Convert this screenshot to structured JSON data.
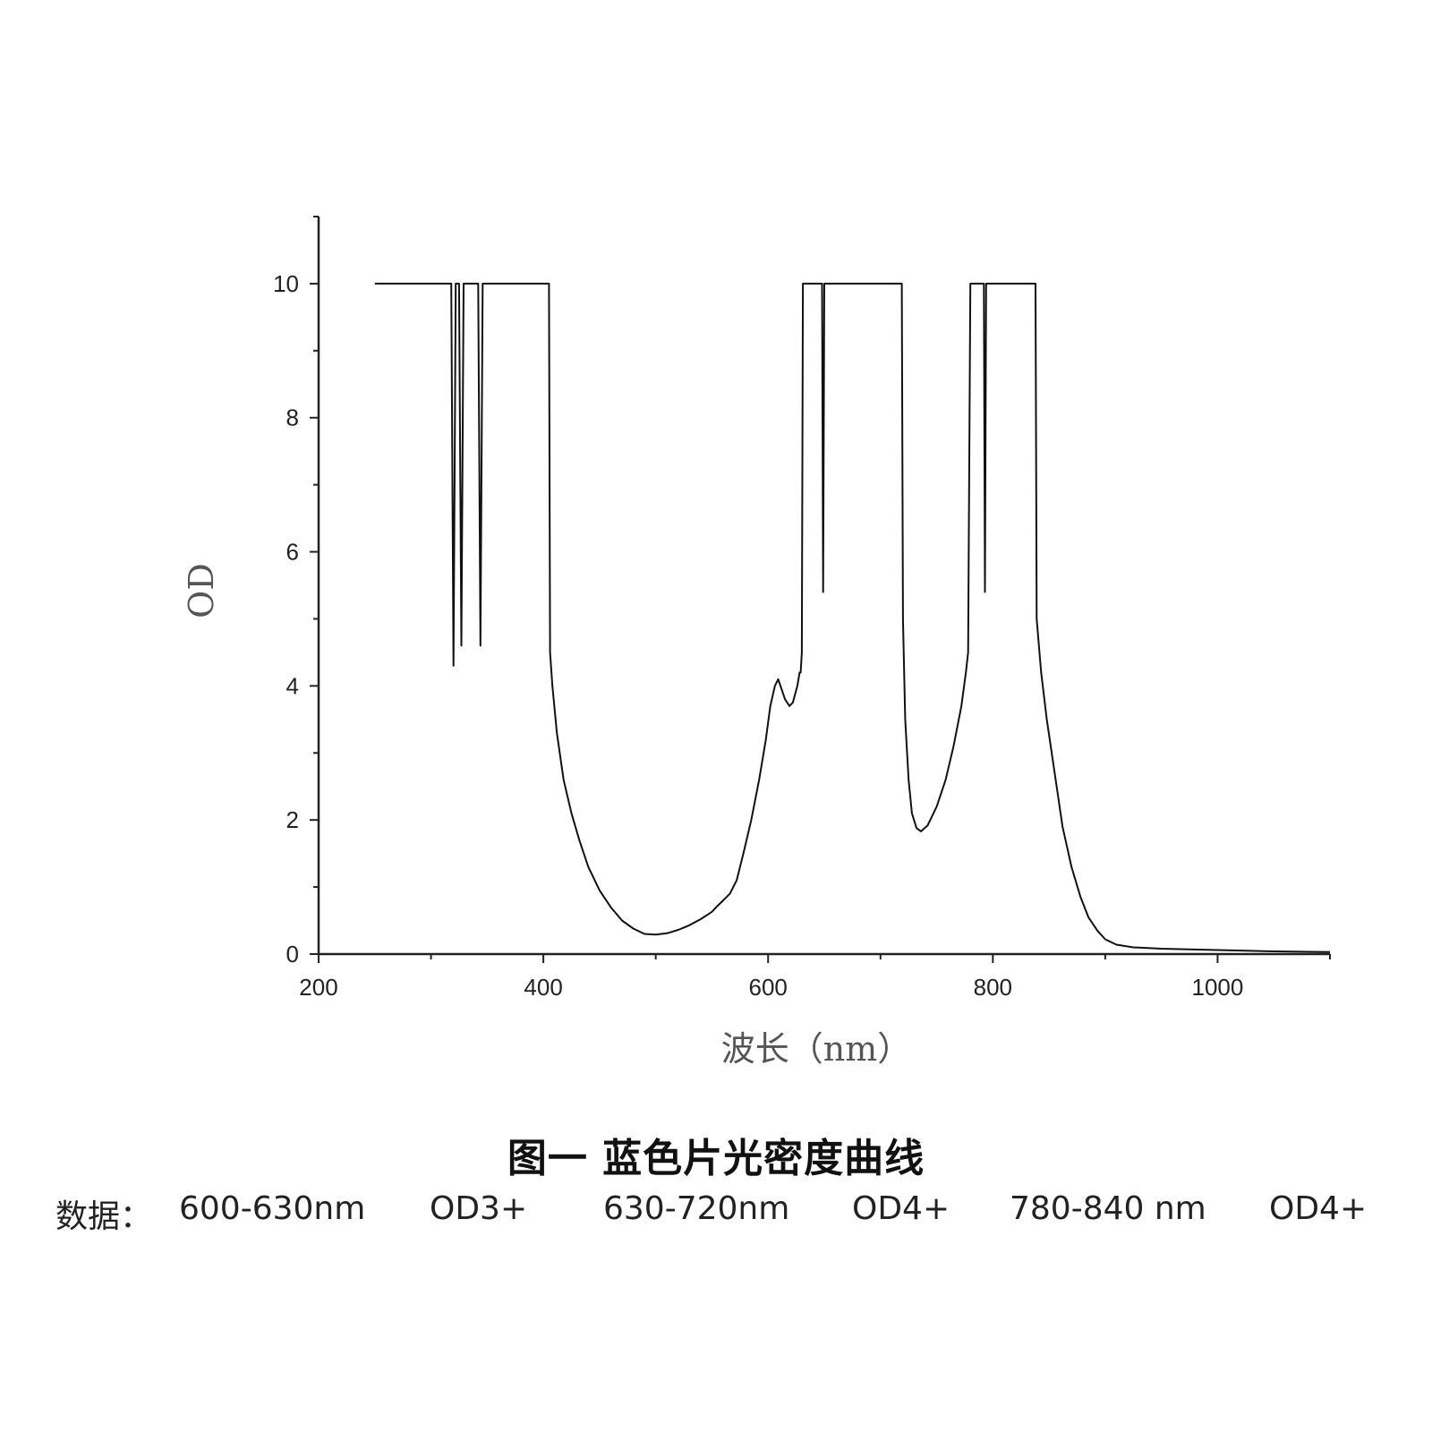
{
  "chart_data": {
    "type": "line",
    "xlabel": "波长（nm）",
    "ylabel": "OD",
    "xlim": [
      200,
      1100
    ],
    "ylim": [
      0,
      11
    ],
    "x_ticks": [
      200,
      400,
      600,
      800,
      1000
    ],
    "y_ticks": [
      0,
      2,
      4,
      6,
      8,
      10
    ],
    "grid": false,
    "series": [
      {
        "color": "#111111",
        "points": [
          [
            250,
            10.0
          ],
          [
            318,
            10.0
          ],
          [
            320,
            4.3
          ],
          [
            322,
            10.0
          ],
          [
            325,
            10.0
          ],
          [
            327,
            4.6
          ],
          [
            329,
            10.0
          ],
          [
            342,
            10.0
          ],
          [
            344,
            4.6
          ],
          [
            346,
            10.0
          ],
          [
            405,
            10.0
          ],
          [
            406,
            4.5
          ],
          [
            408,
            4.0
          ],
          [
            412,
            3.3
          ],
          [
            418,
            2.6
          ],
          [
            425,
            2.1
          ],
          [
            432,
            1.7
          ],
          [
            440,
            1.3
          ],
          [
            450,
            0.95
          ],
          [
            460,
            0.7
          ],
          [
            470,
            0.5
          ],
          [
            480,
            0.38
          ],
          [
            490,
            0.3
          ],
          [
            500,
            0.29
          ],
          [
            510,
            0.31
          ],
          [
            520,
            0.36
          ],
          [
            530,
            0.43
          ],
          [
            540,
            0.52
          ],
          [
            550,
            0.63
          ],
          [
            555,
            0.72
          ],
          [
            560,
            0.8
          ],
          [
            566,
            0.9
          ],
          [
            572,
            1.1
          ],
          [
            578,
            1.5
          ],
          [
            585,
            2.0
          ],
          [
            592,
            2.6
          ],
          [
            598,
            3.2
          ],
          [
            602,
            3.7
          ],
          [
            606,
            4.0
          ],
          [
            609,
            4.1
          ],
          [
            612,
            3.95
          ],
          [
            615,
            3.8
          ],
          [
            619,
            3.7
          ],
          [
            622,
            3.75
          ],
          [
            626,
            4.0
          ],
          [
            628,
            4.2
          ],
          [
            629,
            4.2
          ],
          [
            630,
            4.5
          ],
          [
            631,
            10.0
          ],
          [
            648,
            10.0
          ],
          [
            649,
            5.4
          ],
          [
            650,
            10.0
          ],
          [
            719,
            10.0
          ],
          [
            720,
            5.0
          ],
          [
            722,
            3.5
          ],
          [
            725,
            2.6
          ],
          [
            728,
            2.1
          ],
          [
            732,
            1.88
          ],
          [
            736,
            1.83
          ],
          [
            742,
            1.92
          ],
          [
            750,
            2.2
          ],
          [
            758,
            2.6
          ],
          [
            765,
            3.1
          ],
          [
            772,
            3.7
          ],
          [
            776,
            4.2
          ],
          [
            778,
            4.5
          ],
          [
            780,
            10.0
          ],
          [
            792,
            10.0
          ],
          [
            793,
            5.4
          ],
          [
            794,
            10.0
          ],
          [
            838,
            10.0
          ],
          [
            839,
            5.0
          ],
          [
            843,
            4.2
          ],
          [
            848,
            3.5
          ],
          [
            855,
            2.7
          ],
          [
            862,
            1.9
          ],
          [
            870,
            1.3
          ],
          [
            878,
            0.85
          ],
          [
            885,
            0.55
          ],
          [
            893,
            0.35
          ],
          [
            900,
            0.22
          ],
          [
            910,
            0.14
          ],
          [
            925,
            0.1
          ],
          [
            950,
            0.08
          ],
          [
            1000,
            0.06
          ],
          [
            1050,
            0.04
          ],
          [
            1100,
            0.03
          ]
        ]
      }
    ],
    "title": "图一  蓝色片光密度曲线"
  },
  "data_note": {
    "prefix": "数据：",
    "items": [
      "600-630nm",
      "OD3+",
      "630-720nm",
      "OD4+",
      "780-840 nm",
      "OD4+"
    ]
  }
}
